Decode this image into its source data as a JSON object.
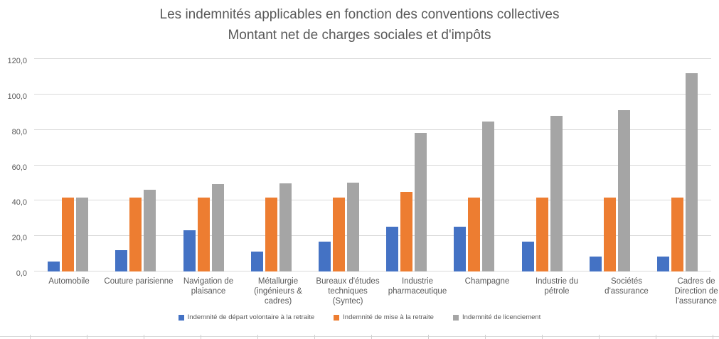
{
  "chart_data": {
    "type": "bar",
    "title_line1": "Les indemnités applicables en fonction des conventions collectives",
    "title_line2": "Montant net de charges sociales et d'impôts",
    "categories": [
      "Automobile",
      "Couture parisienne",
      "Navigation de plaisance",
      "Métallurgie (ingénieurs & cadres)",
      "Bureaux d'études techniques (Syntec)",
      "Industrie pharmaceutique",
      "Champagne",
      "Industrie du pétrole",
      "Sociétés d'assurance",
      "Cadres de Direction de l'assurance"
    ],
    "series": [
      {
        "name": "Indemnité de départ volontaire à la retraite",
        "color": "#4472C4",
        "values": [
          5.5,
          11.9,
          23.3,
          11.3,
          16.8,
          25.3,
          25.3,
          16.8,
          8.4,
          8.4
        ]
      },
      {
        "name": "Indemnité de mise à la retraite",
        "color": "#ED7D31",
        "values": [
          41.7,
          41.7,
          41.7,
          41.7,
          41.7,
          45.0,
          41.7,
          41.7,
          41.7,
          41.7
        ]
      },
      {
        "name": "Indemnité de licenciement",
        "color": "#A5A5A5",
        "values": [
          41.7,
          46.0,
          49.3,
          49.8,
          50.2,
          78.2,
          84.5,
          87.8,
          91.3,
          112.1
        ]
      }
    ],
    "y_axis": {
      "min": 0,
      "max": 120,
      "tick_step": 20,
      "tick_labels": [
        "0,0",
        "20,0",
        "40,0",
        "60,0",
        "80,0",
        "100,0",
        "120,0"
      ]
    },
    "grid": true,
    "legend_position": "bottom",
    "colors": {
      "gridline": "#D9D9D9",
      "axis_text": "#595959",
      "title_text": "#595959"
    }
  }
}
